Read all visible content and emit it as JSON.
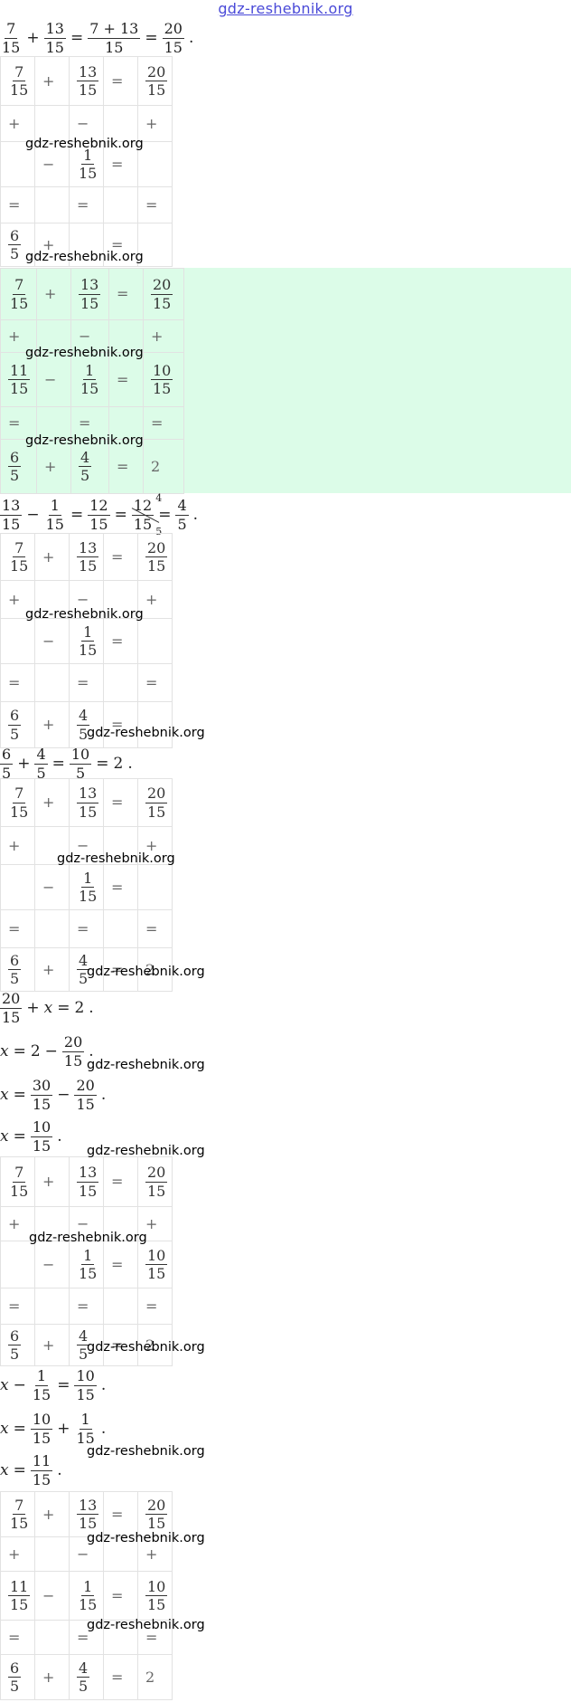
{
  "header": {
    "watermark": "gdz-reshebnik.org"
  },
  "blocks": [
    {
      "tokens": [
        {
          "num": "7",
          "den": "15"
        },
        "+",
        {
          "num": "13",
          "den": "15"
        },
        "=",
        {
          "num": "7 + 13",
          "den": "15"
        },
        "=",
        {
          "num": "20",
          "den": "15"
        },
        "."
      ]
    },
    {
      "rows": [
        [
          {
            "num": "7",
            "den": "15"
          },
          "+",
          {
            "num": "13",
            "den": "15"
          },
          "=",
          {
            "num": "20",
            "den": "15"
          }
        ],
        [
          "+",
          null,
          "−",
          null,
          "+"
        ],
        [
          null,
          "−",
          {
            "num": "1",
            "den": "15"
          },
          "=",
          null
        ],
        [
          "=",
          null,
          "=",
          null,
          "="
        ],
        [
          {
            "num": "6",
            "den": "5"
          },
          "+",
          null,
          "=",
          null
        ]
      ]
    },
    {
      "background": "#dcfce8",
      "rows": [
        [
          {
            "num": "7",
            "den": "15"
          },
          "+",
          {
            "num": "13",
            "den": "15"
          },
          "=",
          {
            "num": "20",
            "den": "15"
          }
        ],
        [
          "+",
          null,
          "−",
          null,
          "+"
        ],
        [
          {
            "num": "11",
            "den": "15"
          },
          "−",
          {
            "num": "1",
            "den": "15"
          },
          "=",
          {
            "num": "10",
            "den": "15"
          }
        ],
        [
          "=",
          null,
          "=",
          null,
          "="
        ],
        [
          {
            "num": "6",
            "den": "5"
          },
          "+",
          {
            "num": "4",
            "den": "5"
          },
          "=",
          "2"
        ]
      ]
    },
    {
      "tokens": [
        {
          "num": "13",
          "den": "15"
        },
        "−",
        {
          "num": "1",
          "den": "15"
        },
        "=",
        {
          "num": "12",
          "den": "15"
        },
        "=",
        {
          "num": "12",
          "den": "15",
          "num_cancel": "4",
          "den_cancel": "5"
        },
        "=",
        {
          "num": "4",
          "den": "5"
        },
        "."
      ]
    },
    {
      "rows": [
        [
          {
            "num": "7",
            "den": "15"
          },
          "+",
          {
            "num": "13",
            "den": "15"
          },
          "=",
          {
            "num": "20",
            "den": "15"
          }
        ],
        [
          "+",
          null,
          "−",
          null,
          "+"
        ],
        [
          null,
          "−",
          {
            "num": "1",
            "den": "15"
          },
          "=",
          null
        ],
        [
          "=",
          null,
          "=",
          null,
          "="
        ],
        [
          {
            "num": "6",
            "den": "5"
          },
          "+",
          {
            "num": "4",
            "den": "5"
          },
          "=",
          null
        ]
      ]
    },
    {
      "tokens": [
        {
          "num": "6",
          "den": "5"
        },
        "+",
        {
          "num": "4",
          "den": "5"
        },
        "=",
        {
          "num": "10",
          "den": "5"
        },
        "=",
        "2",
        "."
      ]
    },
    {
      "rows": [
        [
          {
            "num": "7",
            "den": "15"
          },
          "+",
          {
            "num": "13",
            "den": "15"
          },
          "=",
          {
            "num": "20",
            "den": "15"
          }
        ],
        [
          "+",
          null,
          "−",
          null,
          "+"
        ],
        [
          null,
          "−",
          {
            "num": "1",
            "den": "15"
          },
          "=",
          null
        ],
        [
          "=",
          null,
          "=",
          null,
          "="
        ],
        [
          {
            "num": "6",
            "den": "5"
          },
          "+",
          {
            "num": "4",
            "den": "5"
          },
          "=",
          "2"
        ]
      ]
    },
    {
      "tokens": [
        {
          "num": "20",
          "den": "15"
        },
        "+",
        "x",
        "=",
        "2",
        "."
      ]
    },
    {
      "tokens": [
        "x",
        "=",
        "2",
        "−",
        {
          "num": "20",
          "den": "15"
        },
        "."
      ]
    },
    {
      "tokens": [
        "x",
        "=",
        {
          "num": "30",
          "den": "15"
        },
        "−",
        {
          "num": "20",
          "den": "15"
        },
        "."
      ]
    },
    {
      "tokens": [
        "x",
        "=",
        {
          "num": "10",
          "den": "15"
        },
        "."
      ]
    },
    {
      "rows": [
        [
          {
            "num": "7",
            "den": "15"
          },
          "+",
          {
            "num": "13",
            "den": "15"
          },
          "=",
          {
            "num": "20",
            "den": "15"
          }
        ],
        [
          "+",
          null,
          "−",
          null,
          "+"
        ],
        [
          null,
          "−",
          {
            "num": "1",
            "den": "15"
          },
          "=",
          {
            "num": "10",
            "den": "15"
          }
        ],
        [
          "=",
          null,
          "=",
          null,
          "="
        ],
        [
          {
            "num": "6",
            "den": "5"
          },
          "+",
          {
            "num": "4",
            "den": "5"
          },
          "=",
          "2"
        ]
      ]
    },
    {
      "tokens": [
        "x",
        "−",
        {
          "num": "1",
          "den": "15"
        },
        "=",
        {
          "num": "10",
          "den": "15"
        },
        "."
      ]
    },
    {
      "tokens": [
        "x",
        "=",
        {
          "num": "10",
          "den": "15"
        },
        "+",
        {
          "num": "1",
          "den": "15"
        },
        "."
      ]
    },
    {
      "tokens": [
        "x",
        "=",
        {
          "num": "11",
          "den": "15"
        },
        "."
      ]
    },
    {
      "rows": [
        [
          {
            "num": "7",
            "den": "15"
          },
          "+",
          {
            "num": "13",
            "den": "15"
          },
          "=",
          {
            "num": "20",
            "den": "15"
          }
        ],
        [
          "+",
          null,
          "−",
          null,
          "+"
        ],
        [
          {
            "num": "11",
            "den": "15"
          },
          "−",
          {
            "num": "1",
            "den": "15"
          },
          "=",
          {
            "num": "10",
            "den": "15"
          }
        ],
        [
          "=",
          null,
          "=",
          null,
          "="
        ],
        [
          {
            "num": "6",
            "den": "5"
          },
          "+",
          {
            "num": "4",
            "den": "5"
          },
          "=",
          "2"
        ]
      ]
    }
  ],
  "watermarks": [
    "gdz-reshebnik.org",
    "gdz-reshebnik.org",
    "gdz-reshebnik.org",
    "gdz-reshebnik.org",
    "gdz-reshebnik.org",
    "gdz-reshebnik.org",
    "gdz-reshebnik.org",
    "gdz-reshebnik.org",
    "gdz-reshebnik.org",
    "gdz-reshebnik.org",
    "gdz-reshebnik.org",
    "gdz-reshebnik.org",
    "gdz-reshebnik.org",
    "gdz-reshebnik.org",
    "gdz-reshebnik.org"
  ]
}
